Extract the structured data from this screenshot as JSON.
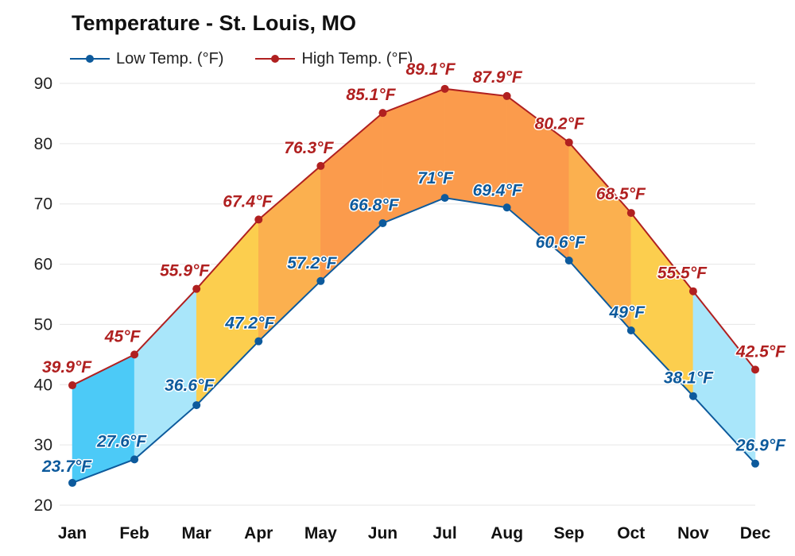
{
  "colors": {
    "low": "#0d5a9c",
    "high": "#b02020",
    "bands": {
      "cold": "#4ccaf7",
      "cool": "#a9e6fa",
      "warm": "#fcce4e",
      "hot": "#fbb04f",
      "very_hot": "#fb9b4c"
    }
  },
  "chart_data": {
    "type": "area",
    "title": "Temperature - St. Louis, MO",
    "categories": [
      "Jan",
      "Feb",
      "Mar",
      "Apr",
      "May",
      "Jun",
      "Jul",
      "Aug",
      "Sep",
      "Oct",
      "Nov",
      "Dec"
    ],
    "series": [
      {
        "name": "Low Temp. (°F)",
        "values": [
          23.7,
          27.6,
          36.6,
          47.2,
          57.2,
          66.8,
          71,
          69.4,
          60.6,
          49,
          38.1,
          26.9
        ],
        "labels": [
          "23.7°F",
          "27.6°F",
          "36.6°F",
          "47.2°F",
          "57.2°F",
          "66.8°F",
          "71°F",
          "69.4°F",
          "60.6°F",
          "49°F",
          "38.1°F",
          "26.9°F"
        ]
      },
      {
        "name": "High Temp. (°F)",
        "values": [
          39.9,
          45,
          55.9,
          67.4,
          76.3,
          85.1,
          89.1,
          87.9,
          80.2,
          68.5,
          55.5,
          42.5
        ],
        "labels": [
          "39.9°F",
          "45°F",
          "55.9°F",
          "67.4°F",
          "76.3°F",
          "85.1°F",
          "89.1°F",
          "87.9°F",
          "80.2°F",
          "68.5°F",
          "55.5°F",
          "42.5°F"
        ]
      }
    ],
    "ylim": [
      20,
      90
    ],
    "yticks": [
      20,
      30,
      40,
      50,
      60,
      70,
      80,
      90
    ],
    "grid": true,
    "legend": "top-left",
    "xlabel": "",
    "ylabel": ""
  }
}
